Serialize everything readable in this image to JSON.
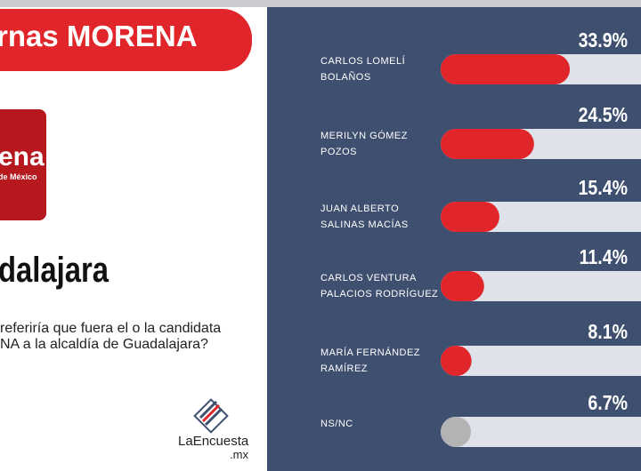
{
  "header": {
    "title": "rnas MORENA",
    "logo": "ena",
    "logo_sub": "de México",
    "city": "dalajara",
    "question": [
      "referiría que fuera el o la candidata",
      "NA a la alcaldía de Guadalajara?"
    ],
    "brand": "LaEncuesta",
    "brand_suffix": ".mx"
  },
  "chart_data": {
    "type": "bar",
    "orientation": "horizontal",
    "categories": [
      "CARLOS LOMELÍ\nBOLAÑOS",
      "MERILYN GÓMEZ\nPOZOS",
      "JUAN ALBERTO\nSALINAS MACÍAS",
      "CARLOS VENTURA\nPALACIOS RODRÍGUEZ",
      "MARÍA FERNÁNDEZ\nRAMÍREZ",
      "NS/NC"
    ],
    "values": [
      33.9,
      24.5,
      15.4,
      11.4,
      8.1,
      6.7
    ],
    "value_labels": [
      "33.9%",
      "24.5%",
      "15.4%",
      "11.4%",
      "8.1%",
      "6.7%"
    ],
    "colors": [
      "#e0262b",
      "#e0262b",
      "#e0262b",
      "#e0262b",
      "#e0262b",
      "#b3b3b3"
    ],
    "track_color": "#dfe2ea",
    "xlim": [
      0,
      100
    ]
  }
}
